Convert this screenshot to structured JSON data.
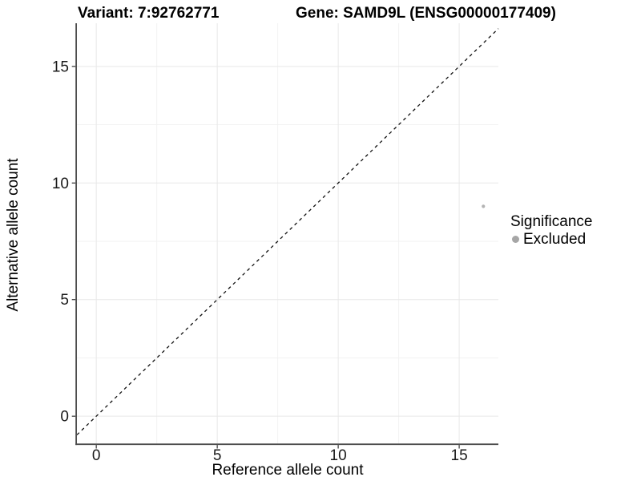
{
  "header": {
    "variant_title": "Variant: 7:92762771",
    "gene_title": "Gene: SAMD9L (ENSG00000177409)"
  },
  "legend": {
    "title": "Significance",
    "entries": [
      {
        "label": "Excluded",
        "color": "#a6a6a6"
      }
    ]
  },
  "chart_data": {
    "type": "scatter",
    "title": "Variant: 7:92762771    Gene: SAMD9L (ENSG00000177409)",
    "xlabel": "Reference allele count",
    "ylabel": "Alternative allele count",
    "xlim": [
      -0.8,
      16.62
    ],
    "ylim": [
      -1.18,
      16.85
    ],
    "x_ticks": [
      0,
      5,
      10,
      15
    ],
    "y_ticks": [
      0,
      5,
      10,
      15
    ],
    "x_minor_ticks": [
      2.5,
      7.5,
      12.5
    ],
    "y_minor_ticks": [
      2.5,
      7.5,
      12.5
    ],
    "grid": "on",
    "legend_position": "right",
    "reference_line": {
      "kind": "identity",
      "equation": "y = x",
      "style": "dashed",
      "color": "#111111"
    },
    "series": [
      {
        "name": "Excluded",
        "color": "#b3b3b3",
        "points": [
          {
            "x": 16,
            "y": 9
          }
        ]
      }
    ],
    "colors": {
      "background": "#ffffff",
      "major_grid": "#e8e8e8",
      "minor_grid": "#f2f2f2",
      "axis_line": "#4d4d4d",
      "tick_mark": "#333333",
      "tick_label": "#1a1a1a"
    }
  }
}
